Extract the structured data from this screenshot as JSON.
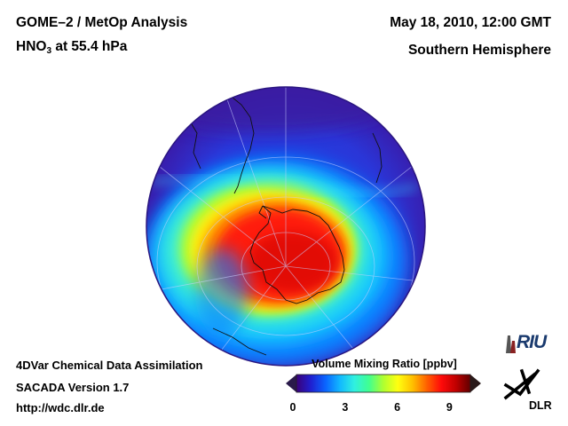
{
  "header": {
    "title": "GOME–2 / MetOp Analysis",
    "species": "HNO",
    "species_sub": "3",
    "level": " at 55.4 hPa",
    "date": "May 18, 2010, 12:00 GMT",
    "region": "Southern Hemisphere"
  },
  "footer": {
    "line1": "4DVar Chemical Data Assimilation",
    "line2": "SACADA Version 1.7",
    "line3": "http://wdc.dlr.de"
  },
  "colorbar": {
    "title": "Volume Mixing Ratio [ppbv]",
    "min": 0,
    "max": 10,
    "ticks": [
      "0",
      "3",
      "6",
      "9"
    ],
    "colors": [
      "#3a0078",
      "#2020d0",
      "#0a64ff",
      "#12b8ff",
      "#30f0e0",
      "#40ff90",
      "#b0ff30",
      "#ffff10",
      "#ffc000",
      "#ff6000",
      "#ff0a0a",
      "#c00000",
      "#600000"
    ]
  },
  "logos": {
    "riu": "RIU",
    "dlr": "DLR"
  },
  "map_data": {
    "projection": "orthographic",
    "center": "South Pole",
    "variable": "HNO3",
    "features": [
      "Antarctica",
      "South America",
      "Africa",
      "Australia"
    ]
  }
}
